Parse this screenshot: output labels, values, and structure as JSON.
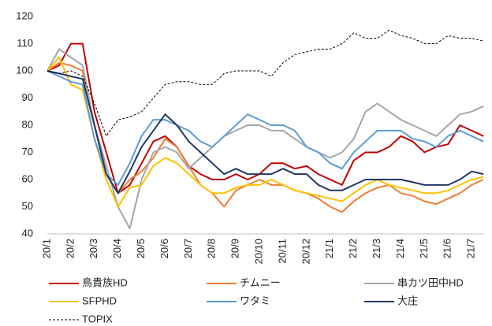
{
  "chart_data": {
    "type": "line",
    "categories": [
      "20/1",
      null,
      "20/2",
      null,
      "20/3",
      null,
      "20/4",
      null,
      "20/5",
      null,
      "20/6",
      null,
      "20/7",
      null,
      "20/8",
      null,
      "20/9",
      null,
      "20/10",
      null,
      "20/11",
      null,
      "20/12",
      null,
      "21/1",
      null,
      "21/2",
      null,
      "21/3",
      null,
      "21/4",
      null,
      "21/5",
      null,
      "21/6",
      null,
      "21/7",
      null
    ],
    "ylim": [
      40,
      120
    ],
    "yticks": [
      40,
      50,
      60,
      70,
      80,
      90,
      100,
      110,
      120
    ],
    "series": [
      {
        "name": "鳥貴族HD",
        "color": "#c00000",
        "values": [
          100,
          102,
          110,
          110,
          85,
          70,
          55,
          58,
          66,
          74,
          76,
          72,
          65,
          62,
          60,
          60,
          62,
          60,
          62,
          66,
          66,
          64,
          65,
          62,
          60,
          58,
          67,
          70,
          70,
          72,
          76,
          74,
          70,
          72,
          73,
          80,
          78,
          76
        ]
      },
      {
        "name": "チムニー",
        "color": "#ed7d31",
        "values": [
          100,
          103,
          102,
          100,
          80,
          62,
          55,
          60,
          63,
          68,
          75,
          72,
          65,
          58,
          55,
          50,
          56,
          58,
          60,
          58,
          58,
          56,
          55,
          53,
          50,
          48,
          52,
          55,
          57,
          58,
          55,
          54,
          52,
          51,
          53,
          55,
          58,
          60
        ]
      },
      {
        "name": "串カツ田中HD",
        "color": "#a5a5a5",
        "values": [
          100,
          108,
          105,
          102,
          80,
          65,
          50,
          42,
          60,
          70,
          72,
          70,
          64,
          68,
          72,
          76,
          78,
          80,
          80,
          78,
          78,
          75,
          72,
          70,
          68,
          70,
          75,
          85,
          88,
          85,
          82,
          80,
          78,
          76,
          80,
          84,
          85,
          87
        ]
      },
      {
        "name": "SFPHD",
        "color": "#ffc000",
        "values": [
          100,
          105,
          95,
          93,
          75,
          60,
          50,
          57,
          58,
          65,
          68,
          66,
          62,
          58,
          55,
          55,
          57,
          58,
          58,
          60,
          58,
          56,
          55,
          54,
          53,
          52,
          55,
          58,
          60,
          58,
          57,
          56,
          55,
          55,
          56,
          58,
          60,
          61
        ]
      },
      {
        "name": "ワタミ",
        "color": "#5b9bd5",
        "values": [
          100,
          98,
          96,
          95,
          75,
          62,
          58,
          66,
          76,
          82,
          82,
          80,
          78,
          74,
          72,
          76,
          80,
          84,
          82,
          80,
          80,
          78,
          72,
          70,
          66,
          64,
          70,
          74,
          78,
          78,
          78,
          75,
          74,
          72,
          76,
          78,
          76,
          74
        ]
      },
      {
        "name": "大庄",
        "color": "#203864",
        "values": [
          100,
          99,
          98,
          97,
          80,
          62,
          55,
          63,
          72,
          78,
          84,
          80,
          74,
          70,
          66,
          62,
          64,
          62,
          62,
          62,
          64,
          62,
          62,
          58,
          56,
          56,
          58,
          60,
          60,
          60,
          60,
          59,
          58,
          58,
          58,
          60,
          63,
          62
        ]
      },
      {
        "name": "TOPIX",
        "color": "#000000",
        "dashed": true,
        "values": [
          100,
          99,
          100,
          98,
          88,
          76,
          82,
          83,
          85,
          90,
          95,
          96,
          96,
          95,
          95,
          99,
          100,
          100,
          100,
          98,
          103,
          106,
          107,
          108,
          108,
          110,
          114,
          112,
          112,
          115,
          113,
          112,
          110,
          110,
          113,
          112,
          112,
          111
        ]
      }
    ]
  }
}
